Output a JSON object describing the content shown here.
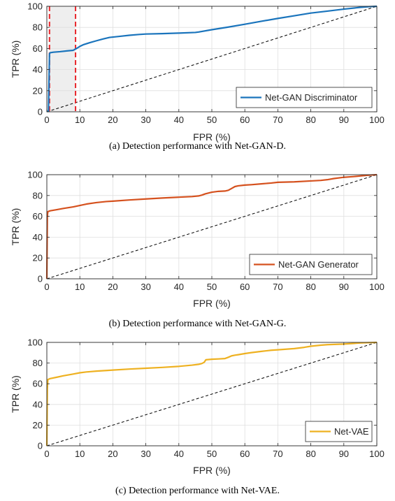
{
  "chart_data": [
    {
      "type": "line",
      "xlabel": "FPR (%)",
      "ylabel": "TPR (%)",
      "xlim": [
        0,
        100
      ],
      "ylim": [
        0,
        100
      ],
      "xticks": [
        0,
        10,
        20,
        30,
        40,
        50,
        60,
        70,
        80,
        90,
        100
      ],
      "yticks": [
        0,
        20,
        40,
        60,
        80,
        100
      ],
      "grid": true,
      "legend_position": "bottom-right",
      "caption": "(a) Detection performance with Net-GAN-D.",
      "shaded_region": {
        "x_range": [
          0.8,
          8.7
        ],
        "color": "#eeeeee",
        "boundary_color": "#e8262b"
      },
      "diagonal_reference": true,
      "series": [
        {
          "name": "Net-GAN Discriminator",
          "color": "#1a74bc",
          "x": [
            0,
            0.5,
            0.8,
            1,
            2,
            4,
            6,
            8,
            9,
            10,
            11,
            13,
            15,
            17,
            19,
            22,
            25,
            28,
            30,
            35,
            40,
            45,
            46,
            50,
            55,
            60,
            65,
            70,
            75,
            80,
            85,
            90,
            95,
            98,
            100
          ],
          "y": [
            0,
            1,
            55,
            56,
            56.5,
            57,
            57.7,
            58.3,
            60,
            62,
            63.5,
            65.5,
            67.3,
            69,
            70.5,
            71.5,
            72.5,
            73.3,
            73.7,
            74.1,
            74.6,
            75.2,
            75.6,
            77.8,
            80.3,
            83,
            85.8,
            88.5,
            91,
            93.6,
            95.4,
            97.3,
            99,
            99.7,
            100
          ]
        }
      ]
    },
    {
      "type": "line",
      "xlabel": "FPR (%)",
      "ylabel": "TPR (%)",
      "xlim": [
        0,
        100
      ],
      "ylim": [
        0,
        100
      ],
      "xticks": [
        0,
        10,
        20,
        30,
        40,
        50,
        60,
        70,
        80,
        90,
        100
      ],
      "yticks": [
        0,
        20,
        40,
        60,
        80,
        100
      ],
      "grid": true,
      "legend_position": "bottom-right",
      "caption": "(b) Detection performance with Net-GAN-G.",
      "diagonal_reference": true,
      "series": [
        {
          "name": "Net-GAN Generator",
          "color": "#d5511e",
          "x": [
            0,
            0.15,
            0.3,
            1,
            3,
            5,
            8,
            10,
            12,
            15,
            18,
            20,
            25,
            30,
            35,
            40,
            44,
            46,
            47,
            48,
            50,
            52,
            54,
            55,
            56,
            57,
            58,
            60,
            62,
            65,
            68,
            70,
            75,
            80,
            83,
            85,
            87,
            90,
            93,
            95,
            97,
            98.5,
            100
          ],
          "y": [
            0,
            60,
            64.5,
            65.3,
            66.4,
            67.6,
            69.1,
            70.4,
            71.8,
            73.2,
            74.2,
            74.6,
            75.7,
            76.7,
            77.6,
            78.4,
            79,
            79.6,
            80.4,
            81.6,
            83.2,
            84,
            84.3,
            85,
            86.8,
            88.6,
            89.3,
            90,
            90.4,
            91.2,
            92,
            92.7,
            93.1,
            94,
            94.5,
            95.2,
            96.3,
            97.5,
            98.2,
            98.8,
            99.4,
            99.7,
            100
          ]
        }
      ]
    },
    {
      "type": "line",
      "xlabel": "FPR (%)",
      "ylabel": "TPR (%)",
      "xlim": [
        0,
        100
      ],
      "ylim": [
        0,
        100
      ],
      "xticks": [
        0,
        10,
        20,
        30,
        40,
        50,
        60,
        70,
        80,
        90,
        100
      ],
      "yticks": [
        0,
        20,
        40,
        60,
        80,
        100
      ],
      "grid": true,
      "legend_position": "bottom-right",
      "caption": "(c) Detection performance with Net-VAE.",
      "diagonal_reference": true,
      "series": [
        {
          "name": "Net-VAE",
          "color": "#eeb121",
          "x": [
            0,
            0.15,
            0.3,
            1,
            3,
            5,
            8,
            10,
            12,
            15,
            18,
            20,
            25,
            30,
            35,
            40,
            44,
            46,
            47,
            47.7,
            48.2,
            50,
            52,
            54,
            55,
            56,
            57,
            58,
            60,
            62,
            65,
            68,
            70,
            75,
            78,
            80,
            83,
            85,
            90,
            93,
            95,
            97,
            100
          ],
          "y": [
            0,
            55,
            64,
            65,
            66.3,
            67.7,
            69.4,
            70.6,
            71.4,
            72.2,
            72.8,
            73.2,
            74.2,
            75,
            75.8,
            76.8,
            78,
            78.8,
            79.6,
            80.8,
            83.2,
            83.7,
            84,
            84.4,
            85.6,
            87,
            87.6,
            88.1,
            89.2,
            90.1,
            91.3,
            92.4,
            92.8,
            94,
            95.2,
            96.3,
            97.3,
            97.8,
            98.4,
            99,
            99.5,
            99.7,
            100
          ]
        }
      ]
    }
  ]
}
